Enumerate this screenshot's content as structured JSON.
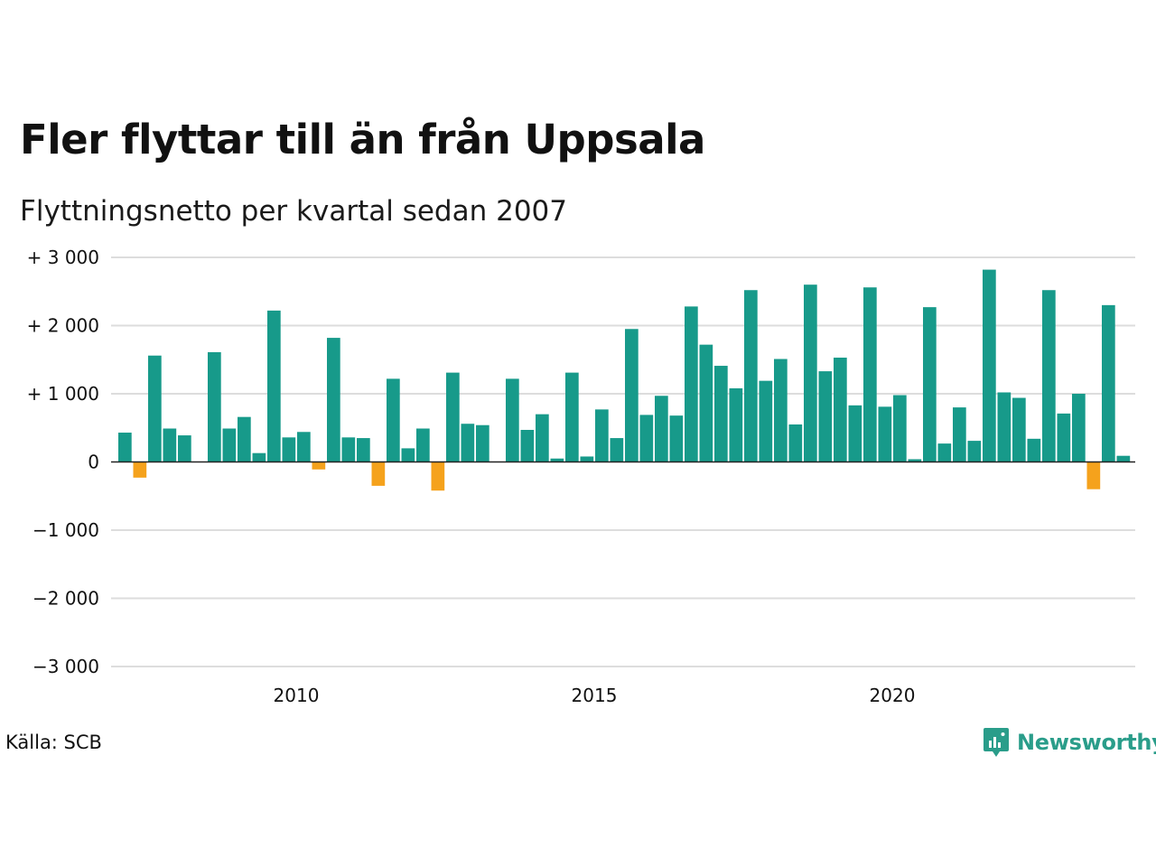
{
  "title": "Fler flyttar till än från Uppsala",
  "subtitle": "Flyttningsnetto per kvartal sedan 2007",
  "source": "Källa: SCB",
  "brand": "Newsworthy",
  "colors": {
    "positive": "#179a8a",
    "negative": "#f5a21c",
    "grid": "#dddddd",
    "zero": "#222222",
    "brand": "#2a9d8a"
  },
  "chart_data": {
    "type": "bar",
    "ylim": [
      -3000,
      3000
    ],
    "yticks": [
      {
        "value": 3000,
        "label": "+ 3 000"
      },
      {
        "value": 2000,
        "label": "+ 2 000"
      },
      {
        "value": 1000,
        "label": "+ 1 000"
      },
      {
        "value": 0,
        "label": "0"
      },
      {
        "value": -1000,
        "label": "−1 000"
      },
      {
        "value": -2000,
        "label": "−2 000"
      },
      {
        "value": -3000,
        "label": "−3 000"
      }
    ],
    "xticks": [
      {
        "label": "2010",
        "category_index": 12
      },
      {
        "label": "2015",
        "category_index": 32
      },
      {
        "label": "2020",
        "category_index": 52
      }
    ],
    "grid": true,
    "categories": [
      "2007 K1",
      "2007 K2",
      "2007 K3",
      "2007 K4",
      "2008 K1",
      "2008 K2",
      "2008 K3",
      "2008 K4",
      "2009 K1",
      "2009 K2",
      "2009 K3",
      "2009 K4",
      "2010 K1",
      "2010 K2",
      "2010 K3",
      "2010 K4",
      "2011 K1",
      "2011 K2",
      "2011 K3",
      "2011 K4",
      "2012 K1",
      "2012 K2",
      "2012 K3",
      "2012 K4",
      "2013 K1",
      "2013 K2",
      "2013 K3",
      "2013 K4",
      "2014 K1",
      "2014 K2",
      "2014 K3",
      "2014 K4",
      "2015 K1",
      "2015 K2",
      "2015 K3",
      "2015 K4",
      "2016 K1",
      "2016 K2",
      "2016 K3",
      "2016 K4",
      "2017 K1",
      "2017 K2",
      "2017 K3",
      "2017 K4",
      "2018 K1",
      "2018 K2",
      "2018 K3",
      "2018 K4",
      "2019 K1",
      "2019 K2",
      "2019 K3",
      "2019 K4",
      "2020 K1",
      "2020 K2",
      "2020 K3",
      "2020 K4",
      "2021 K1",
      "2021 K2",
      "2021 K3",
      "2021 K4",
      "2022 K1",
      "2022 K2",
      "2022 K3",
      "2022 K4",
      "2023 K1",
      "2023 K2",
      "2023 K3",
      "2023 K4"
    ],
    "values": [
      430,
      -230,
      1560,
      490,
      390,
      0,
      1610,
      490,
      660,
      130,
      2220,
      360,
      440,
      -110,
      1820,
      360,
      350,
      -350,
      1220,
      200,
      490,
      -420,
      1310,
      560,
      540,
      0,
      1220,
      470,
      700,
      50,
      1310,
      80,
      770,
      350,
      1950,
      690,
      970,
      680,
      2280,
      1720,
      1410,
      1080,
      2520,
      1190,
      1510,
      550,
      2600,
      1330,
      1530,
      830,
      2560,
      810,
      980,
      40,
      2270,
      270,
      800,
      310,
      2820,
      1020,
      940,
      340,
      2520,
      710,
      1000,
      -400,
      2300,
      90
    ]
  }
}
